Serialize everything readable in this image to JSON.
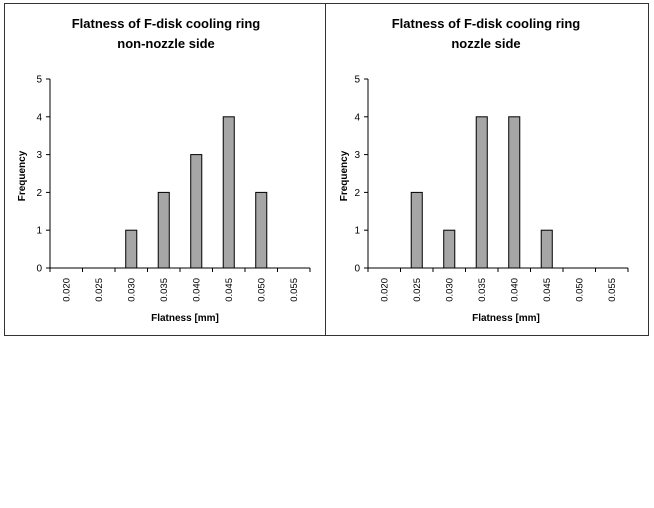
{
  "chart_data": [
    {
      "type": "bar",
      "title": "Flatness of F-disk cooling ring",
      "subtitle": "non-nozzle side",
      "xlabel": "Flatness [mm]",
      "ylabel": "Frequency",
      "categories": [
        "0.020",
        "0.025",
        "0.030",
        "0.035",
        "0.040",
        "0.045",
        "0.050",
        "0.055"
      ],
      "values": [
        0,
        0,
        1,
        2,
        3,
        4,
        2,
        0
      ],
      "ylim": [
        0,
        5
      ],
      "yticks": [
        "0",
        "1",
        "2",
        "3",
        "4",
        "5"
      ],
      "grid": false,
      "bar_color": "#a6a6a6"
    },
    {
      "type": "bar",
      "title": "Flatness of F-disk cooling ring",
      "subtitle": "nozzle side",
      "xlabel": "Flatness [mm]",
      "ylabel": "Frequency",
      "categories": [
        "0.020",
        "0.025",
        "0.030",
        "0.035",
        "0.040",
        "0.045",
        "0.050",
        "0.055"
      ],
      "values": [
        0,
        2,
        1,
        4,
        4,
        1,
        0,
        0
      ],
      "ylim": [
        0,
        5
      ],
      "yticks": [
        "0",
        "1",
        "2",
        "3",
        "4",
        "5"
      ],
      "grid": false,
      "bar_color": "#a6a6a6"
    }
  ]
}
